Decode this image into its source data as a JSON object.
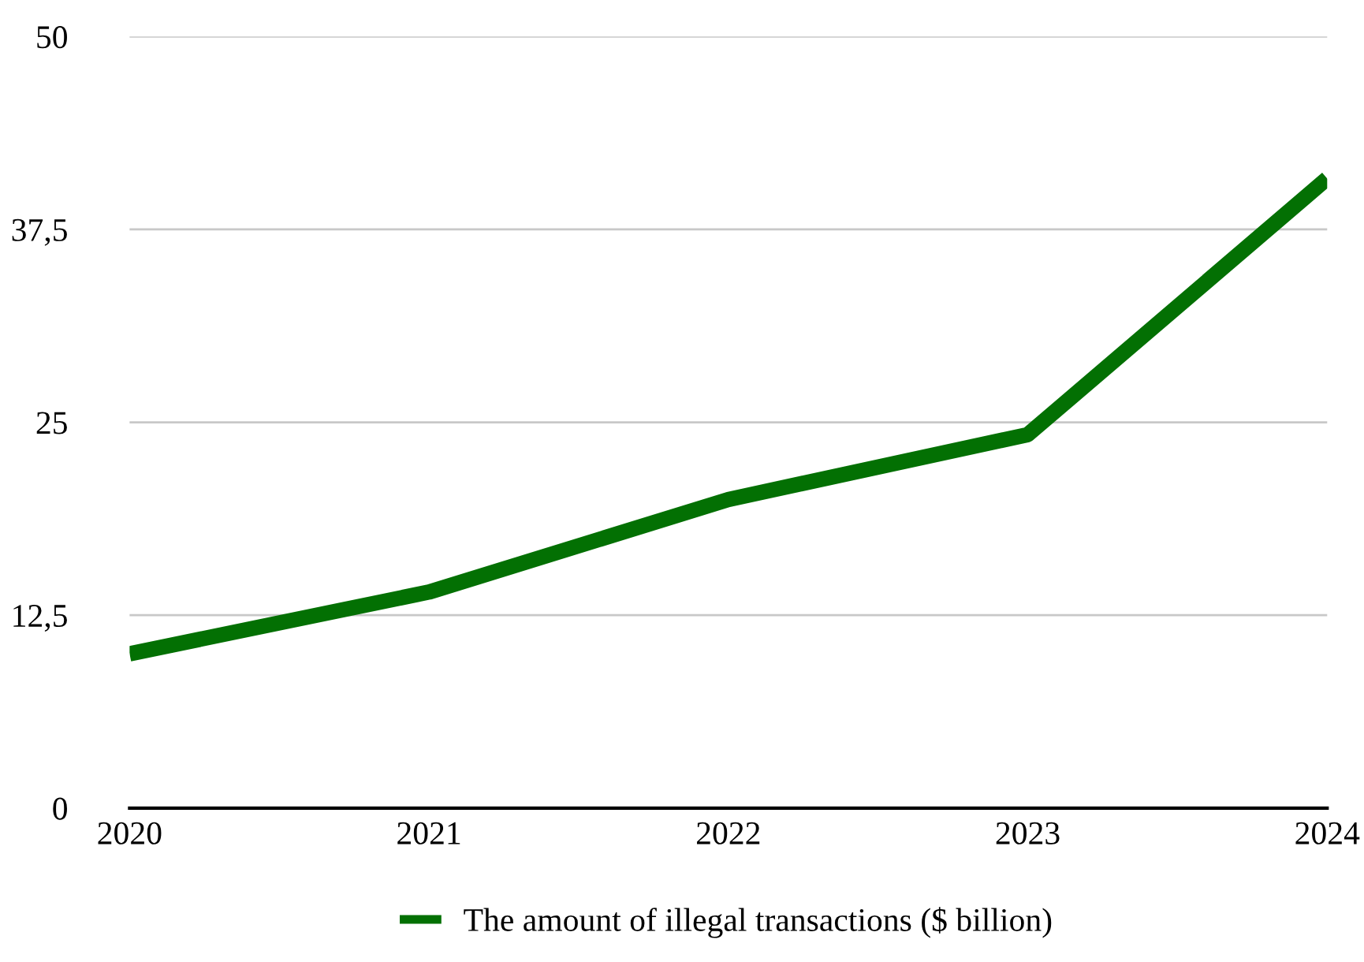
{
  "chart_data": {
    "type": "line",
    "categories": [
      "2020",
      "2021",
      "2022",
      "2023",
      "2024"
    ],
    "series": [
      {
        "name": "The amount of illegal transactions ($ billion)",
        "color": "#037003",
        "values": [
          10.0,
          14.0,
          20.0,
          24.2,
          40.8
        ]
      }
    ],
    "ylim": [
      0,
      50
    ],
    "yticks": [
      0,
      {
        "value": 12.5,
        "label": "12,5"
      },
      25,
      {
        "value": 37.5,
        "label": "37,5"
      },
      50
    ],
    "grid": "y",
    "legend": "bottom",
    "marker": "none",
    "line_style": "solid"
  }
}
